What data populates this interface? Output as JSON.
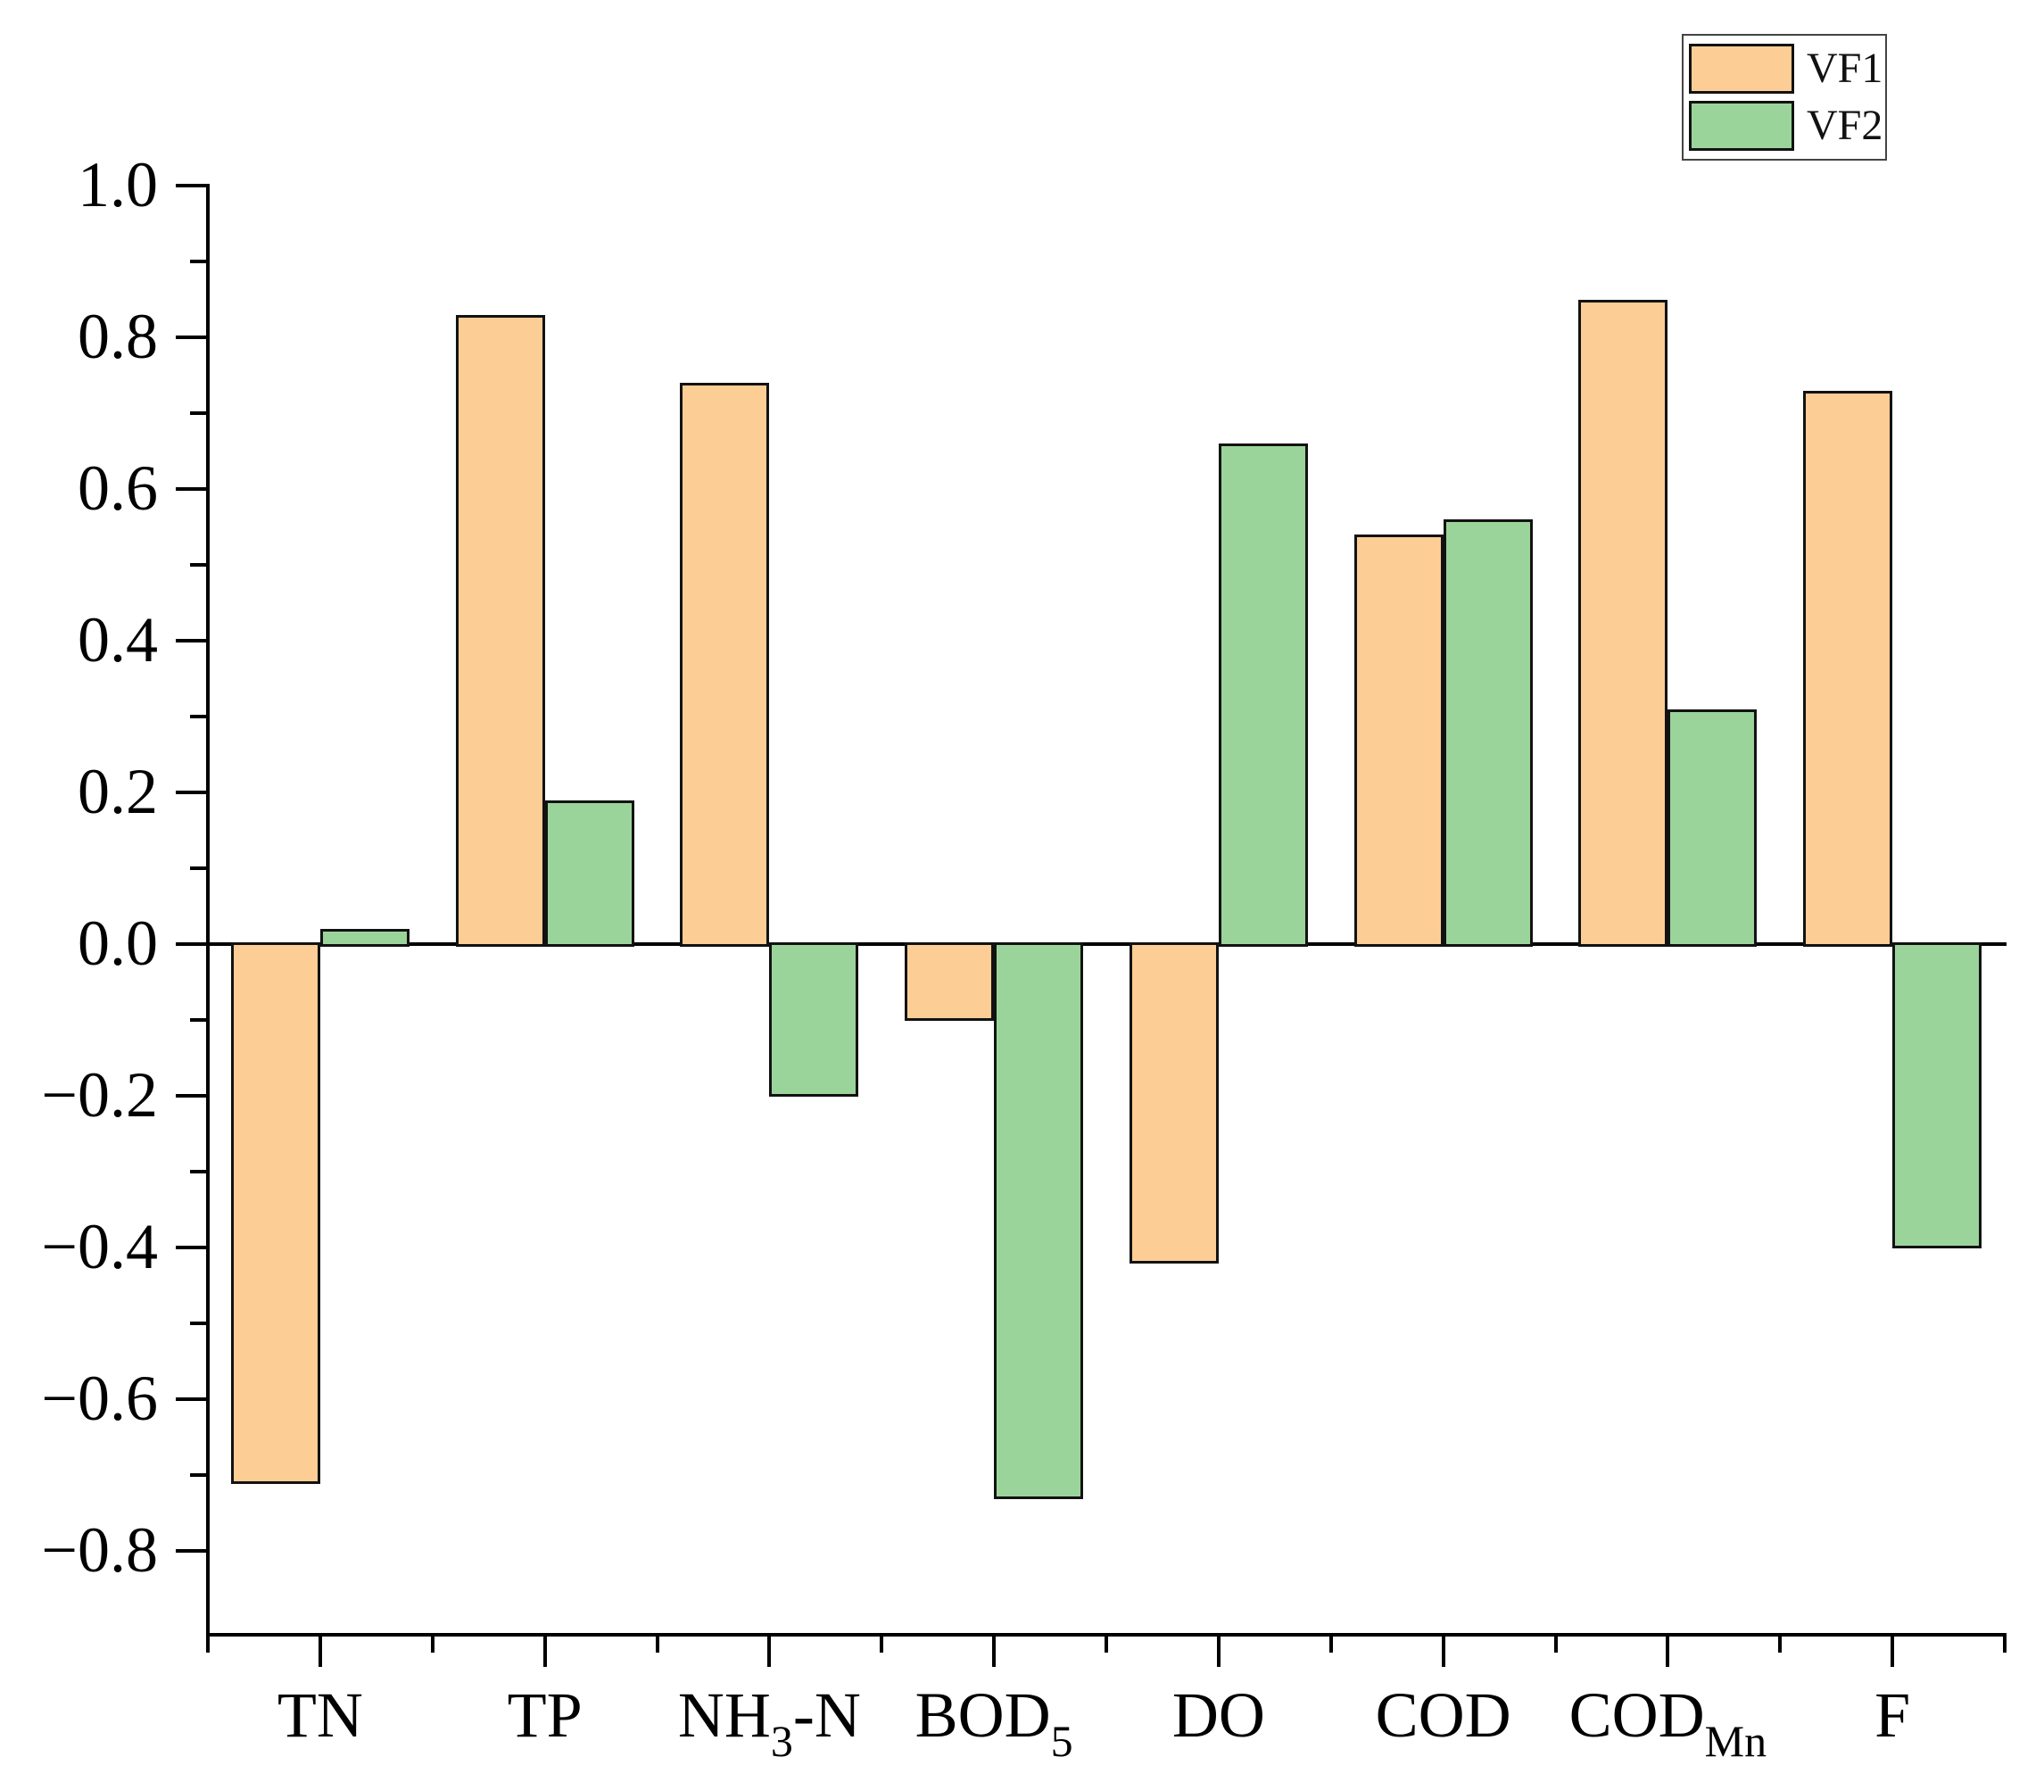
{
  "chart_data": {
    "type": "bar",
    "title": "",
    "categories": [
      "TN",
      "TP",
      "NH3-N",
      "BOD5",
      "DO",
      "COD",
      "CODMn",
      "F"
    ],
    "categories_rich": [
      {
        "main": "TN",
        "sub": "",
        "suffix": ""
      },
      {
        "main": "TP",
        "sub": "",
        "suffix": ""
      },
      {
        "main": "NH",
        "sub": "3",
        "suffix": "-N"
      },
      {
        "main": "BOD",
        "sub": "5",
        "suffix": ""
      },
      {
        "main": "DO",
        "sub": "",
        "suffix": ""
      },
      {
        "main": "COD",
        "sub": "",
        "suffix": ""
      },
      {
        "main": "COD",
        "sub": "Mn",
        "suffix": ""
      },
      {
        "main": "F",
        "sub": "",
        "suffix": ""
      }
    ],
    "series": [
      {
        "name": "VF1",
        "color": "#FCCD94",
        "values": [
          -0.71,
          0.83,
          0.74,
          -0.1,
          -0.42,
          0.54,
          0.85,
          0.73
        ]
      },
      {
        "name": "VF2",
        "color": "#9BD49A",
        "values": [
          0.02,
          0.19,
          -0.2,
          -0.73,
          0.66,
          0.56,
          0.31,
          -0.4
        ]
      }
    ],
    "xlabel": "",
    "ylabel": "",
    "ylim": [
      -0.91,
      1.0
    ],
    "y_major_ticks": [
      1.0,
      0.8,
      0.6,
      0.4,
      0.2,
      0.0,
      -0.2,
      -0.4,
      -0.6,
      -0.8
    ],
    "y_tick_labels": [
      "1.0",
      "0.8",
      "0.6",
      "0.4",
      "0.2",
      "0.0",
      "-0.2",
      "-0.4",
      "-0.6",
      "-0.8"
    ],
    "y_minor_ticks": [
      0.9,
      0.7,
      0.5,
      0.3,
      0.1,
      -0.1,
      -0.3,
      -0.5,
      -0.7
    ],
    "grid": false,
    "legend_position": "top-right",
    "bar_border_color": "#121212",
    "axis_color": "#000000",
    "background_color": "#ffffff"
  },
  "legend": {
    "items": [
      {
        "label": "VF1"
      },
      {
        "label": "VF2"
      }
    ]
  }
}
